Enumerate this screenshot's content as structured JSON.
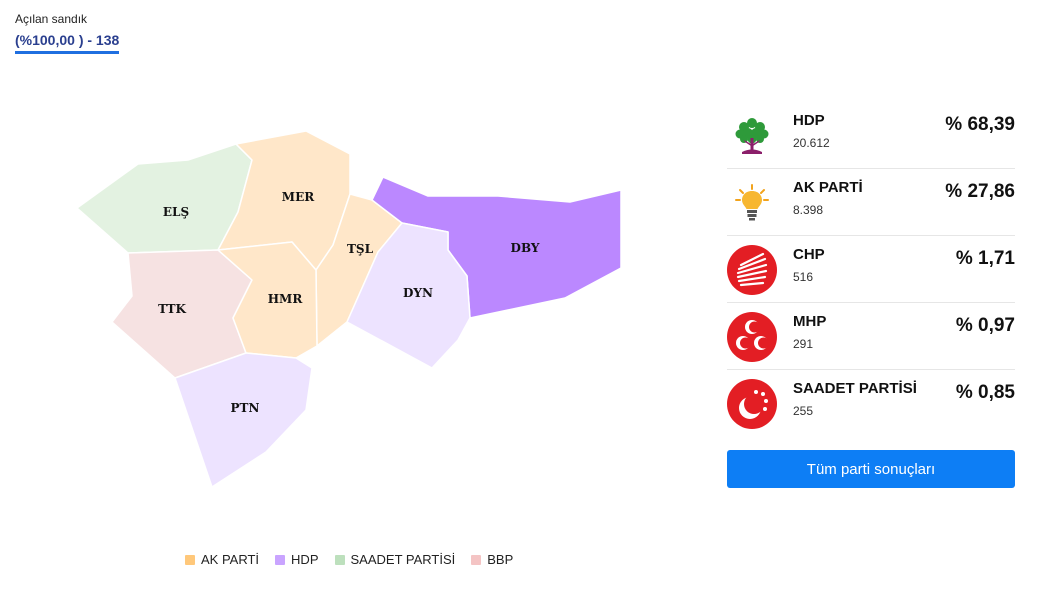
{
  "header": {
    "opened_label": "Açılan sandık",
    "opened_value": "(%100,00 ) - 138"
  },
  "colors": {
    "ak_parti": "#ffe7c9",
    "hdp_strong": "#bb88ff",
    "hdp_light": "#ede3ff",
    "saadet": "#e3f2e1",
    "bbp": "#f6e2e2",
    "legend_ak_parti": "#ffc87a",
    "legend_hdp": "#c9a4ff",
    "legend_saadet": "#bde0bd",
    "legend_bbp": "#f4c4c4",
    "button": "#0d7ef5"
  },
  "map": {
    "districts": [
      {
        "code": "ELŞ",
        "winner": "SAADET PARTİSİ"
      },
      {
        "code": "MER",
        "winner": "AK PARTİ"
      },
      {
        "code": "TŞL",
        "winner": "AK PARTİ"
      },
      {
        "code": "DBY",
        "winner": "HDP"
      },
      {
        "code": "TTK",
        "winner": "BBP"
      },
      {
        "code": "HMR",
        "winner": "AK PARTİ"
      },
      {
        "code": "DYN",
        "winner": "HDP"
      },
      {
        "code": "PTN",
        "winner": "HDP"
      }
    ]
  },
  "legend": [
    {
      "label": "AK PARTİ",
      "color": "#ffc87a"
    },
    {
      "label": "HDP",
      "color": "#c9a4ff"
    },
    {
      "label": "SAADET PARTİSİ",
      "color": "#bde0bd"
    },
    {
      "label": "BBP",
      "color": "#f4c4c4"
    }
  ],
  "results": [
    {
      "name": "HDP",
      "votes": "20.612",
      "pct": "% 68,39",
      "logo": "tree-icon"
    },
    {
      "name": "AK PARTİ",
      "votes": "8.398",
      "pct": "% 27,86",
      "logo": "lightbulb-icon"
    },
    {
      "name": "CHP",
      "votes": "516",
      "pct": "% 1,71",
      "logo": "six-arrows-icon"
    },
    {
      "name": "MHP",
      "votes": "291",
      "pct": "% 0,97",
      "logo": "three-crescents-icon"
    },
    {
      "name": "SAADET PARTİSİ",
      "votes": "255",
      "pct": "% 0,85",
      "logo": "crescent-stars-icon"
    }
  ],
  "button": {
    "label": "Tüm parti sonuçları"
  }
}
